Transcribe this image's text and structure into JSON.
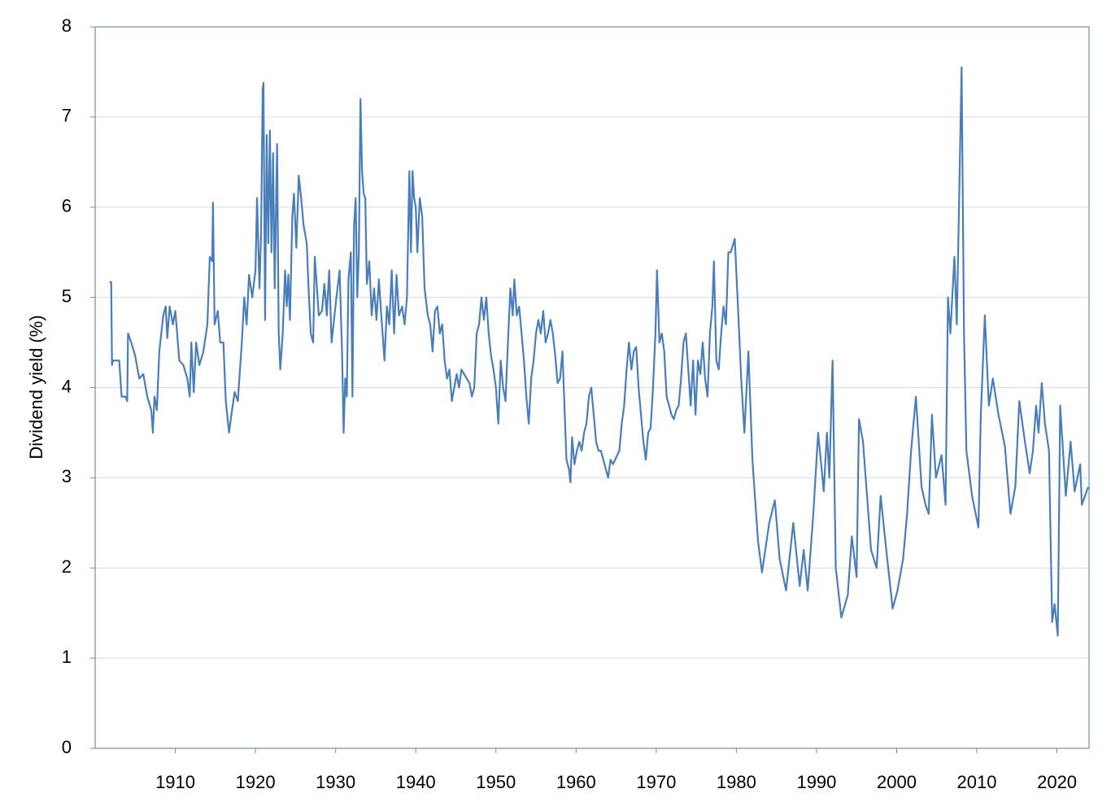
{
  "chart_data": {
    "type": "line",
    "y_label": "Dividend yield (%)",
    "color": "#4a7ebb",
    "grid": true,
    "xlim": [
      1900,
      2024
    ],
    "xticks": [
      1910,
      1920,
      1930,
      1940,
      1950,
      1960,
      1970,
      1980,
      1990,
      2000,
      2010,
      2020
    ],
    "ylim": [
      0,
      8
    ],
    "yticks": [
      0,
      1,
      2,
      3,
      4,
      5,
      6,
      7,
      8
    ],
    "x": [
      1901.8,
      1902.0,
      1902.1,
      1902.2,
      1903.0,
      1903.3,
      1903.8,
      1904.0,
      1904.1,
      1904.5,
      1905.0,
      1905.5,
      1906.0,
      1906.5,
      1907.0,
      1907.2,
      1907.4,
      1907.7,
      1908.0,
      1908.5,
      1908.8,
      1909.0,
      1909.3,
      1909.7,
      1910.0,
      1910.5,
      1911.0,
      1911.5,
      1911.8,
      1912.0,
      1912.3,
      1912.6,
      1913.0,
      1913.5,
      1914.0,
      1914.3,
      1914.6,
      1914.7,
      1914.9,
      1915.3,
      1915.6,
      1916.0,
      1916.3,
      1916.7,
      1917.0,
      1917.4,
      1917.8,
      1918.3,
      1918.6,
      1918.9,
      1919.2,
      1919.6,
      1920.0,
      1920.2,
      1920.5,
      1920.7,
      1920.9,
      1921.0,
      1921.2,
      1921.4,
      1921.6,
      1921.8,
      1922.0,
      1922.2,
      1922.4,
      1922.7,
      1922.9,
      1923.1,
      1923.4,
      1923.7,
      1923.9,
      1924.1,
      1924.3,
      1924.6,
      1924.8,
      1925.1,
      1925.4,
      1925.7,
      1926.0,
      1926.4,
      1926.6,
      1926.9,
      1927.2,
      1927.4,
      1927.6,
      1927.9,
      1928.3,
      1928.6,
      1928.9,
      1929.2,
      1929.5,
      1929.8,
      1930.1,
      1930.5,
      1930.8,
      1931.0,
      1931.2,
      1931.4,
      1931.6,
      1931.9,
      1932.1,
      1932.3,
      1932.5,
      1932.7,
      1932.9,
      1933.1,
      1933.3,
      1933.5,
      1933.7,
      1933.9,
      1934.2,
      1934.5,
      1934.8,
      1935.1,
      1935.4,
      1935.7,
      1936.1,
      1936.4,
      1936.7,
      1937.0,
      1937.3,
      1937.6,
      1937.9,
      1938.3,
      1938.6,
      1938.9,
      1939.2,
      1939.4,
      1939.6,
      1939.8,
      1940.0,
      1940.2,
      1940.5,
      1940.8,
      1941.1,
      1941.5,
      1941.8,
      1942.1,
      1942.4,
      1942.7,
      1943.0,
      1943.3,
      1943.6,
      1943.9,
      1944.2,
      1944.5,
      1944.8,
      1945.1,
      1945.4,
      1945.7,
      1946.7,
      1947.0,
      1947.3,
      1947.6,
      1947.9,
      1948.2,
      1948.5,
      1948.8,
      1949.1,
      1949.4,
      1949.7,
      1950.0,
      1950.3,
      1950.6,
      1950.9,
      1951.2,
      1951.5,
      1951.8,
      1952.1,
      1952.3,
      1952.6,
      1952.9,
      1953.2,
      1953.5,
      1953.8,
      1954.1,
      1954.4,
      1954.7,
      1955.0,
      1955.3,
      1955.6,
      1955.9,
      1956.2,
      1956.5,
      1956.8,
      1957.1,
      1957.4,
      1957.7,
      1958.0,
      1958.3,
      1958.8,
      1959.1,
      1959.3,
      1959.5,
      1959.8,
      1960.1,
      1960.4,
      1960.7,
      1961.0,
      1961.3,
      1961.6,
      1961.9,
      1962.2,
      1962.5,
      1962.8,
      1963.1,
      1963.4,
      1963.7,
      1964.0,
      1964.3,
      1964.6,
      1965.4,
      1965.7,
      1966.0,
      1966.3,
      1966.6,
      1966.9,
      1967.2,
      1967.5,
      1967.8,
      1968.1,
      1968.4,
      1968.7,
      1969.0,
      1969.3,
      1969.6,
      1969.9,
      1970.1,
      1970.4,
      1970.7,
      1971.0,
      1971.3,
      1971.6,
      1971.9,
      1972.2,
      1972.5,
      1972.8,
      1973.1,
      1973.4,
      1973.7,
      1974.0,
      1974.3,
      1974.6,
      1974.9,
      1975.2,
      1975.5,
      1975.8,
      1976.1,
      1976.4,
      1976.7,
      1977.0,
      1977.2,
      1977.5,
      1977.8,
      1978.1,
      1978.4,
      1978.7,
      1979.0,
      1979.3,
      1979.8,
      1980.3,
      1980.6,
      1981.0,
      1981.5,
      1982.0,
      1982.7,
      1983.2,
      1984.1,
      1984.8,
      1985.4,
      1986.2,
      1987.1,
      1987.9,
      1988.4,
      1988.9,
      1989.6,
      1990.2,
      1990.9,
      1991.3,
      1991.6,
      1992.0,
      1992.4,
      1993.1,
      1993.9,
      1994.4,
      1995.0,
      1995.3,
      1995.8,
      1996.8,
      1997.5,
      1998.0,
      1998.7,
      1999.5,
      2000.1,
      2000.8,
      2001.3,
      2001.8,
      2002.4,
      2003.1,
      2003.6,
      2004.0,
      2004.4,
      2004.9,
      2005.6,
      2006.1,
      2006.4,
      2006.7,
      2007.2,
      2007.5,
      2008.1,
      2008.4,
      2008.7,
      2009.4,
      2010.2,
      2010.5,
      2011.0,
      2011.5,
      2012.0,
      2012.7,
      2013.5,
      2014.2,
      2014.8,
      2015.3,
      2016.0,
      2016.6,
      2017.0,
      2017.4,
      2017.7,
      2018.1,
      2018.5,
      2019.0,
      2019.4,
      2019.7,
      2020.1,
      2020.4,
      2021.1,
      2021.7,
      2022.2,
      2022.9,
      2023.1,
      2023.9
    ],
    "values": [
      5.17,
      5.17,
      4.25,
      4.3,
      4.3,
      3.9,
      3.9,
      3.85,
      4.6,
      4.5,
      4.35,
      4.1,
      4.15,
      3.9,
      3.75,
      3.5,
      3.9,
      3.75,
      4.4,
      4.8,
      4.9,
      4.55,
      4.9,
      4.7,
      4.85,
      4.3,
      4.25,
      4.1,
      3.9,
      4.5,
      3.95,
      4.5,
      4.25,
      4.4,
      4.7,
      5.45,
      5.4,
      6.05,
      4.7,
      4.85,
      4.5,
      4.5,
      3.85,
      3.5,
      3.7,
      3.95,
      3.85,
      4.5,
      5.0,
      4.7,
      5.25,
      5.0,
      5.3,
      6.1,
      5.1,
      5.7,
      7.3,
      7.38,
      4.75,
      6.8,
      5.6,
      6.85,
      5.5,
      6.6,
      5.1,
      6.7,
      4.6,
      4.2,
      4.6,
      5.3,
      4.9,
      5.25,
      4.75,
      5.9,
      6.15,
      5.55,
      6.35,
      6.1,
      5.8,
      5.6,
      5.15,
      4.6,
      4.5,
      5.45,
      5.2,
      4.8,
      4.85,
      5.15,
      4.8,
      5.3,
      4.5,
      4.75,
      5.0,
      5.3,
      4.4,
      3.5,
      4.1,
      3.9,
      5.2,
      5.5,
      3.9,
      5.8,
      6.1,
      5.0,
      5.5,
      7.2,
      6.4,
      6.15,
      6.1,
      5.15,
      5.4,
      4.8,
      5.1,
      4.75,
      5.2,
      4.8,
      4.3,
      4.9,
      4.7,
      5.3,
      4.6,
      5.25,
      4.8,
      4.9,
      4.7,
      5.0,
      6.4,
      5.5,
      6.4,
      6.1,
      6.0,
      5.5,
      6.1,
      5.9,
      5.1,
      4.8,
      4.7,
      4.4,
      4.85,
      4.9,
      4.6,
      4.7,
      4.3,
      4.1,
      4.2,
      3.85,
      4.0,
      4.15,
      4.0,
      4.2,
      4.05,
      3.9,
      4.0,
      4.6,
      4.7,
      5.0,
      4.75,
      5.0,
      4.6,
      4.35,
      4.2,
      4.0,
      3.6,
      4.3,
      4.0,
      3.85,
      4.5,
      5.1,
      4.8,
      5.2,
      4.8,
      4.9,
      4.6,
      4.3,
      3.9,
      3.6,
      4.1,
      4.3,
      4.6,
      4.75,
      4.6,
      4.85,
      4.5,
      4.6,
      4.75,
      4.6,
      4.35,
      4.05,
      4.1,
      4.4,
      3.2,
      3.1,
      2.95,
      3.45,
      3.15,
      3.3,
      3.4,
      3.3,
      3.5,
      3.6,
      3.9,
      4.0,
      3.7,
      3.4,
      3.3,
      3.3,
      3.2,
      3.1,
      3.0,
      3.2,
      3.15,
      3.3,
      3.6,
      3.8,
      4.2,
      4.5,
      4.2,
      4.4,
      4.45,
      4.0,
      3.7,
      3.4,
      3.2,
      3.5,
      3.55,
      4.0,
      4.6,
      5.3,
      4.5,
      4.6,
      4.4,
      3.9,
      3.8,
      3.7,
      3.65,
      3.75,
      3.8,
      4.1,
      4.5,
      4.6,
      4.2,
      3.8,
      4.3,
      3.7,
      4.3,
      4.15,
      4.5,
      4.1,
      3.9,
      4.6,
      4.9,
      5.4,
      4.3,
      4.2,
      4.6,
      4.9,
      4.7,
      5.5,
      5.5,
      5.65,
      4.7,
      4.1,
      3.5,
      4.4,
      3.2,
      2.3,
      1.95,
      2.5,
      2.75,
      2.1,
      1.75,
      2.5,
      1.8,
      2.2,
      1.75,
      2.6,
      3.5,
      2.85,
      3.5,
      3.0,
      4.3,
      2.0,
      1.45,
      1.7,
      2.35,
      1.9,
      3.65,
      3.4,
      2.2,
      2.0,
      2.8,
      2.2,
      1.55,
      1.75,
      2.1,
      2.6,
      3.3,
      3.9,
      2.9,
      2.7,
      2.6,
      3.7,
      3.0,
      3.25,
      2.7,
      5.0,
      4.6,
      5.45,
      4.7,
      7.55,
      4.6,
      3.3,
      2.8,
      2.45,
      3.7,
      4.8,
      3.8,
      4.1,
      3.7,
      3.35,
      2.6,
      2.9,
      3.85,
      3.4,
      3.05,
      3.3,
      3.8,
      3.5,
      4.05,
      3.6,
      3.3,
      1.4,
      1.6,
      1.25,
      3.8,
      2.8,
      3.4,
      2.85,
      3.15,
      2.7,
      2.9
    ]
  }
}
